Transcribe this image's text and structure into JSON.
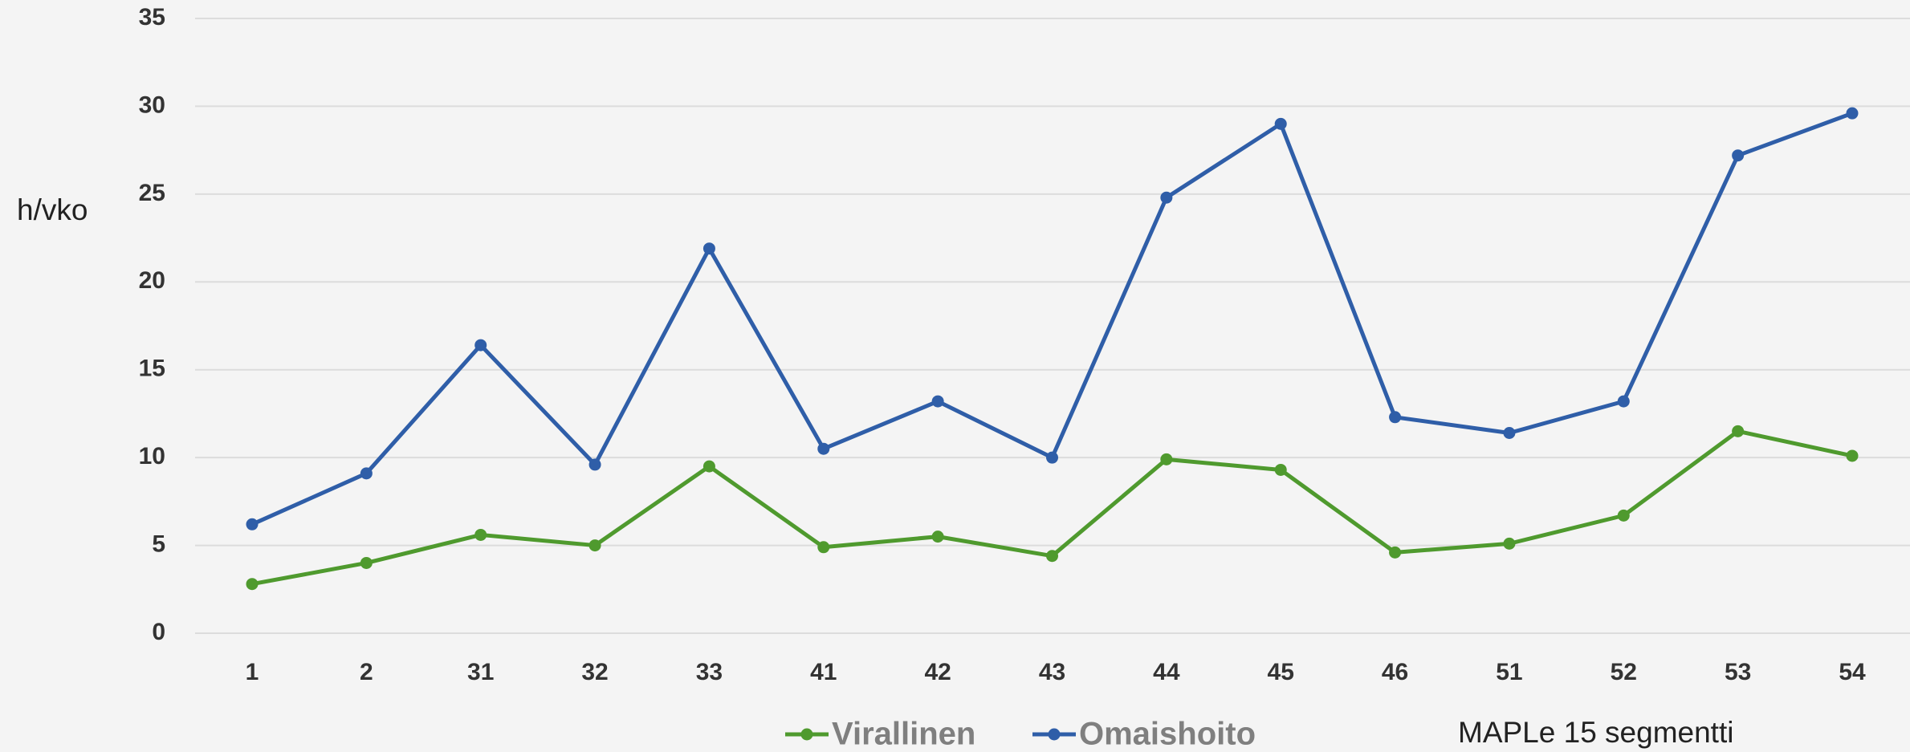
{
  "chart_data": {
    "type": "line",
    "y_label": "h/vko",
    "x_label": "MAPLe 15 segmentti",
    "categories": [
      "1",
      "2",
      "31",
      "32",
      "33",
      "41",
      "42",
      "43",
      "44",
      "45",
      "46",
      "51",
      "52",
      "53",
      "54"
    ],
    "series": [
      {
        "name": "Virallinen",
        "color": "#4f9a2e",
        "values": [
          2.8,
          4.0,
          5.6,
          5.0,
          9.5,
          4.9,
          5.5,
          4.4,
          9.9,
          9.3,
          4.6,
          5.1,
          6.7,
          11.5,
          10.1
        ]
      },
      {
        "name": "Omaishoito",
        "color": "#2f5ea8",
        "values": [
          6.2,
          9.1,
          16.4,
          9.6,
          21.9,
          10.5,
          13.2,
          10.0,
          24.8,
          29.0,
          12.3,
          11.4,
          13.2,
          27.2,
          29.6
        ]
      }
    ],
    "ylim": [
      0,
      35
    ],
    "yticks": [
      0,
      5,
      10,
      15,
      20,
      25,
      30,
      35
    ],
    "grid": true
  }
}
